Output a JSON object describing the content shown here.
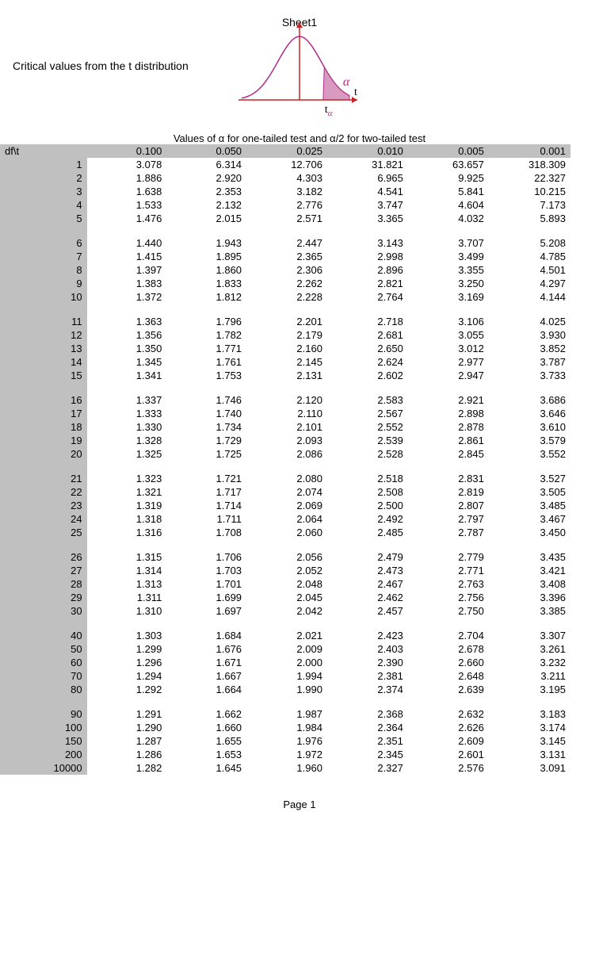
{
  "sheet_title": "Sheet1",
  "page_footer": "Page 1",
  "subtitle": "Critical values from the t distribution",
  "caption": "Values of α for one-tailed test and α/2 for two-tailed test",
  "corner_label": "df\\t",
  "curve": {
    "width": 170,
    "height": 120,
    "stroke_color": "#b22a8a",
    "fill_color": "#d89abf",
    "axis_color": "#cc2222",
    "alpha_label": "α",
    "t_label": "t",
    "t_alpha_label": "tα",
    "alpha_color": "#c02288",
    "label_color": "#000000"
  },
  "columns": [
    "0.100",
    "0.050",
    "0.025",
    "0.010",
    "0.005",
    "0.001"
  ],
  "groups": [
    {
      "rows": [
        {
          "df": "1",
          "v": [
            "3.078",
            "6.314",
            "12.706",
            "31.821",
            "63.657",
            "318.309"
          ]
        },
        {
          "df": "2",
          "v": [
            "1.886",
            "2.920",
            "4.303",
            "6.965",
            "9.925",
            "22.327"
          ]
        },
        {
          "df": "3",
          "v": [
            "1.638",
            "2.353",
            "3.182",
            "4.541",
            "5.841",
            "10.215"
          ]
        },
        {
          "df": "4",
          "v": [
            "1.533",
            "2.132",
            "2.776",
            "3.747",
            "4.604",
            "7.173"
          ]
        },
        {
          "df": "5",
          "v": [
            "1.476",
            "2.015",
            "2.571",
            "3.365",
            "4.032",
            "5.893"
          ]
        }
      ]
    },
    {
      "rows": [
        {
          "df": "6",
          "v": [
            "1.440",
            "1.943",
            "2.447",
            "3.143",
            "3.707",
            "5.208"
          ]
        },
        {
          "df": "7",
          "v": [
            "1.415",
            "1.895",
            "2.365",
            "2.998",
            "3.499",
            "4.785"
          ]
        },
        {
          "df": "8",
          "v": [
            "1.397",
            "1.860",
            "2.306",
            "2.896",
            "3.355",
            "4.501"
          ]
        },
        {
          "df": "9",
          "v": [
            "1.383",
            "1.833",
            "2.262",
            "2.821",
            "3.250",
            "4.297"
          ]
        },
        {
          "df": "10",
          "v": [
            "1.372",
            "1.812",
            "2.228",
            "2.764",
            "3.169",
            "4.144"
          ]
        }
      ]
    },
    {
      "rows": [
        {
          "df": "11",
          "v": [
            "1.363",
            "1.796",
            "2.201",
            "2.718",
            "3.106",
            "4.025"
          ]
        },
        {
          "df": "12",
          "v": [
            "1.356",
            "1.782",
            "2.179",
            "2.681",
            "3.055",
            "3.930"
          ]
        },
        {
          "df": "13",
          "v": [
            "1.350",
            "1.771",
            "2.160",
            "2.650",
            "3.012",
            "3.852"
          ]
        },
        {
          "df": "14",
          "v": [
            "1.345",
            "1.761",
            "2.145",
            "2.624",
            "2.977",
            "3.787"
          ]
        },
        {
          "df": "15",
          "v": [
            "1.341",
            "1.753",
            "2.131",
            "2.602",
            "2.947",
            "3.733"
          ]
        }
      ]
    },
    {
      "rows": [
        {
          "df": "16",
          "v": [
            "1.337",
            "1.746",
            "2.120",
            "2.583",
            "2.921",
            "3.686"
          ]
        },
        {
          "df": "17",
          "v": [
            "1.333",
            "1.740",
            "2.110",
            "2.567",
            "2.898",
            "3.646"
          ]
        },
        {
          "df": "18",
          "v": [
            "1.330",
            "1.734",
            "2.101",
            "2.552",
            "2.878",
            "3.610"
          ]
        },
        {
          "df": "19",
          "v": [
            "1.328",
            "1.729",
            "2.093",
            "2.539",
            "2.861",
            "3.579"
          ]
        },
        {
          "df": "20",
          "v": [
            "1.325",
            "1.725",
            "2.086",
            "2.528",
            "2.845",
            "3.552"
          ]
        }
      ]
    },
    {
      "rows": [
        {
          "df": "21",
          "v": [
            "1.323",
            "1.721",
            "2.080",
            "2.518",
            "2.831",
            "3.527"
          ]
        },
        {
          "df": "22",
          "v": [
            "1.321",
            "1.717",
            "2.074",
            "2.508",
            "2.819",
            "3.505"
          ]
        },
        {
          "df": "23",
          "v": [
            "1.319",
            "1.714",
            "2.069",
            "2.500",
            "2.807",
            "3.485"
          ]
        },
        {
          "df": "24",
          "v": [
            "1.318",
            "1.711",
            "2.064",
            "2.492",
            "2.797",
            "3.467"
          ]
        },
        {
          "df": "25",
          "v": [
            "1.316",
            "1.708",
            "2.060",
            "2.485",
            "2.787",
            "3.450"
          ]
        }
      ]
    },
    {
      "rows": [
        {
          "df": "26",
          "v": [
            "1.315",
            "1.706",
            "2.056",
            "2.479",
            "2.779",
            "3.435"
          ]
        },
        {
          "df": "27",
          "v": [
            "1.314",
            "1.703",
            "2.052",
            "2.473",
            "2.771",
            "3.421"
          ]
        },
        {
          "df": "28",
          "v": [
            "1.313",
            "1.701",
            "2.048",
            "2.467",
            "2.763",
            "3.408"
          ]
        },
        {
          "df": "29",
          "v": [
            "1.311",
            "1.699",
            "2.045",
            "2.462",
            "2.756",
            "3.396"
          ]
        },
        {
          "df": "30",
          "v": [
            "1.310",
            "1.697",
            "2.042",
            "2.457",
            "2.750",
            "3.385"
          ]
        }
      ]
    },
    {
      "rows": [
        {
          "df": "40",
          "v": [
            "1.303",
            "1.684",
            "2.021",
            "2.423",
            "2.704",
            "3.307"
          ]
        },
        {
          "df": "50",
          "v": [
            "1.299",
            "1.676",
            "2.009",
            "2.403",
            "2.678",
            "3.261"
          ]
        },
        {
          "df": "60",
          "v": [
            "1.296",
            "1.671",
            "2.000",
            "2.390",
            "2.660",
            "3.232"
          ]
        },
        {
          "df": "70",
          "v": [
            "1.294",
            "1.667",
            "1.994",
            "2.381",
            "2.648",
            "3.211"
          ]
        },
        {
          "df": "80",
          "v": [
            "1.292",
            "1.664",
            "1.990",
            "2.374",
            "2.639",
            "3.195"
          ]
        }
      ]
    },
    {
      "rows": [
        {
          "df": "90",
          "v": [
            "1.291",
            "1.662",
            "1.987",
            "2.368",
            "2.632",
            "3.183"
          ]
        },
        {
          "df": "100",
          "v": [
            "1.290",
            "1.660",
            "1.984",
            "2.364",
            "2.626",
            "3.174"
          ]
        },
        {
          "df": "150",
          "v": [
            "1.287",
            "1.655",
            "1.976",
            "2.351",
            "2.609",
            "3.145"
          ]
        },
        {
          "df": "200",
          "v": [
            "1.286",
            "1.653",
            "1.972",
            "2.345",
            "2.601",
            "3.131"
          ]
        },
        {
          "df": "10000",
          "v": [
            "1.282",
            "1.645",
            "1.960",
            "2.327",
            "2.576",
            "3.091"
          ]
        }
      ]
    }
  ]
}
